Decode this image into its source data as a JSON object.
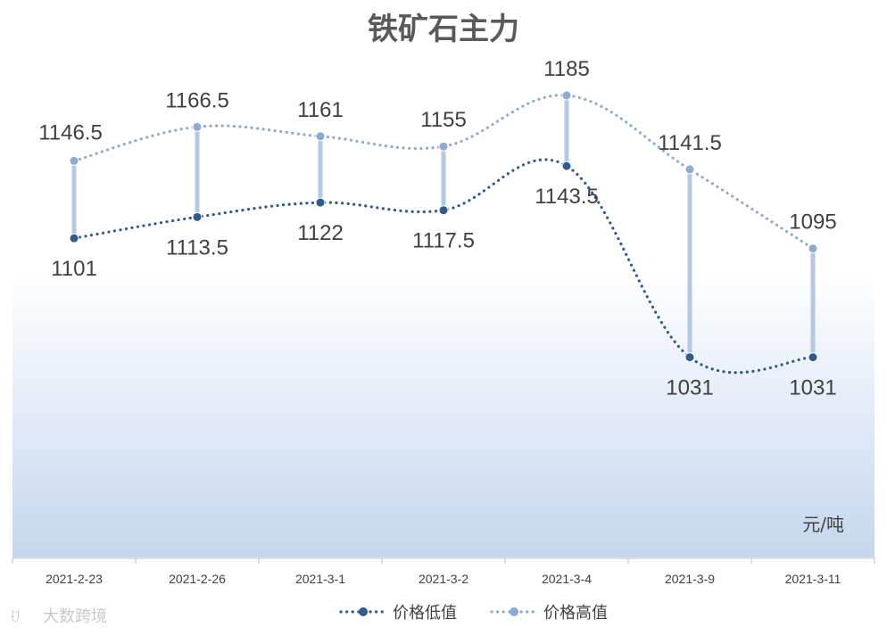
{
  "chart_data": {
    "type": "line",
    "title": "铁矿石主力",
    "unit_label": "元/吨",
    "categories": [
      "2021-2-23",
      "2021-2-26",
      "2021-3-1",
      "2021-3-2",
      "2021-3-4",
      "2021-3-9",
      "2021-3-11"
    ],
    "series": [
      {
        "name": "价格低值",
        "values": [
          1101,
          1113.5,
          1122,
          1117.5,
          1143.5,
          1031,
          1031
        ],
        "labels": [
          "1101",
          "1113.5",
          "1122",
          "1117.5",
          "1143.5",
          "1031",
          "1031"
        ],
        "color": "#2f5b8e"
      },
      {
        "name": "价格高值",
        "values": [
          1146.5,
          1166.5,
          1161,
          1155,
          1185,
          1141.5,
          1095
        ],
        "labels": [
          "1146.5",
          "1166.5",
          "1161",
          "1155",
          "1185",
          "1141.5",
          "1095"
        ],
        "color": "#8faad0"
      }
    ],
    "drop_line_color": "#b4c7e7",
    "background_gradient": [
      "#ffffff",
      "#c5d6ee"
    ],
    "legend_position": "bottom",
    "grid": false
  },
  "watermark": "大数跨境"
}
